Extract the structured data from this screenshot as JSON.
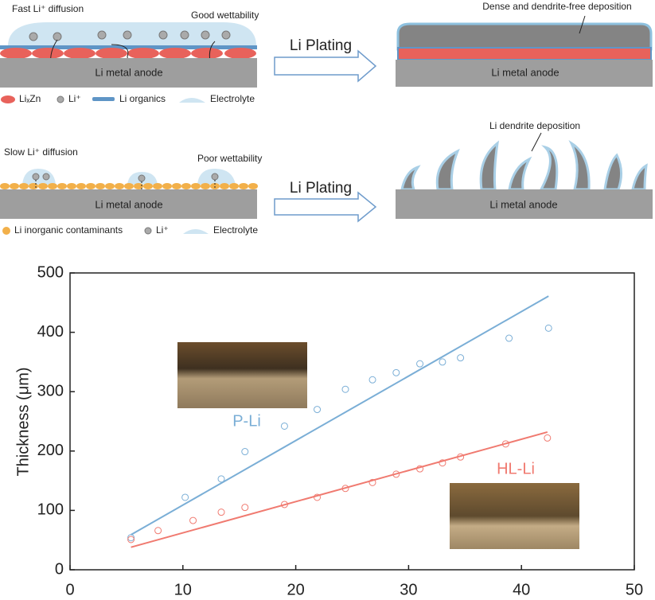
{
  "schematic": {
    "top": {
      "fast": "Fast Li⁺ diffusion",
      "wet": "Good wettability",
      "anode_left": "Li metal anode",
      "plating": "Li Plating",
      "deposition": "Dense and dendrite-free deposition",
      "anode_right": "Li metal anode",
      "legend": [
        "LiₓZn",
        "Li⁺",
        "Li organics",
        "Electrolyte"
      ]
    },
    "bottom": {
      "slow": "Slow Li⁺ diffusion",
      "wet": "Poor wettability",
      "anode_left": "Li metal anode",
      "plating": "Li Plating",
      "deposition": "Li dendrite deposition",
      "anode_right": "Li metal anode",
      "legend": [
        "Li inorganic contaminants",
        "Li⁺",
        "Electrolyte"
      ]
    }
  },
  "chart_data": {
    "type": "scatter",
    "y_label": "Thickness (μm)",
    "xlim": [
      0,
      50
    ],
    "xticks": [
      0,
      10,
      20,
      30,
      40,
      50
    ],
    "ylim": [
      0,
      500
    ],
    "yticks": [
      0,
      100,
      200,
      300,
      400,
      500
    ],
    "grid": false,
    "series": [
      {
        "name": "P-Li",
        "color": "#7aaed6",
        "x": [
          5.4,
          10.2,
          13.4,
          15.5,
          19.0,
          21.9,
          24.4,
          26.8,
          28.9,
          31.0,
          33.0,
          34.6,
          38.9,
          42.4
        ],
        "values": [
          54,
          122,
          153,
          199,
          242,
          270,
          304,
          320,
          332,
          347,
          350,
          357,
          390,
          407
        ],
        "fit_x": [
          5.4,
          42.4
        ],
        "fit_values": [
          59,
          461
        ]
      },
      {
        "name": "HL-Li",
        "color": "#f07a70",
        "x": [
          5.4,
          7.8,
          10.9,
          13.4,
          15.5,
          19.0,
          21.9,
          24.4,
          26.8,
          28.9,
          31.0,
          33.0,
          34.6,
          38.6,
          42.3
        ],
        "values": [
          51,
          66,
          83,
          97,
          105,
          110,
          122,
          137,
          147,
          161,
          170,
          180,
          190,
          212,
          222
        ],
        "fit_x": [
          5.4,
          42.3
        ],
        "fit_values": [
          38,
          232
        ]
      }
    ]
  }
}
